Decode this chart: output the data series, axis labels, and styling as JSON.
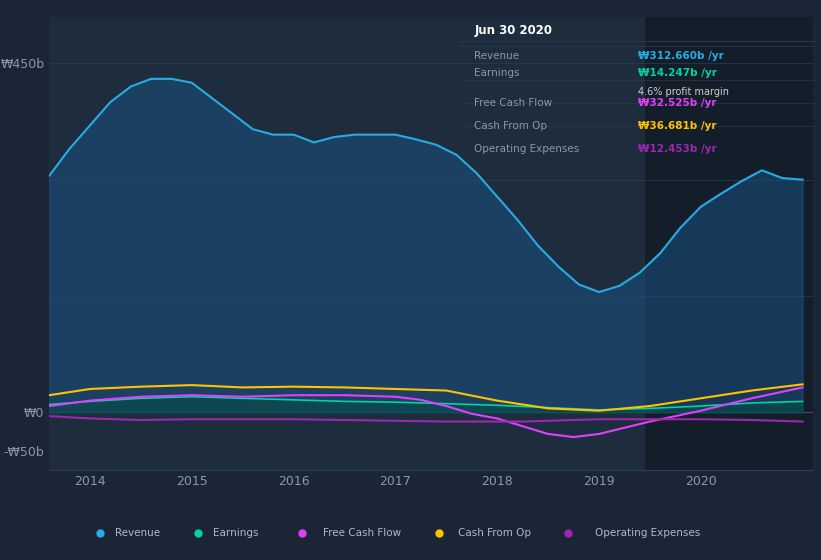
{
  "background_color": "#1c2535",
  "plot_bg_color": "#1e2d3e",
  "highlight_bg_color": "#141e2a",
  "grid_color": "#2d3f52",
  "ylim": [
    -75,
    510
  ],
  "xlim": [
    2013.6,
    2021.1
  ],
  "ytick_positions": [
    -50,
    0,
    450
  ],
  "ytick_labels": [
    "-₩50b",
    "₩0",
    "₩450b"
  ],
  "xticks": [
    2014,
    2015,
    2016,
    2017,
    2018,
    2019,
    2020
  ],
  "legend_items": [
    {
      "label": "Revenue",
      "color": "#29abe2"
    },
    {
      "label": "Earnings",
      "color": "#00d4a0"
    },
    {
      "label": "Free Cash Flow",
      "color": "#e040fb"
    },
    {
      "label": "Cash From Op",
      "color": "#ffc200"
    },
    {
      "label": "Operating Expenses",
      "color": "#9c27b0"
    }
  ],
  "info_box": {
    "date": "Jun 30 2020",
    "rows": [
      {
        "label": "Revenue",
        "val": "₩312.660b /yr",
        "val_color": "#29abe2"
      },
      {
        "label": "Earnings",
        "val": "₩14.247b /yr",
        "val_color": "#00d4a0",
        "sub": "4.6% profit margin"
      },
      {
        "label": "Free Cash Flow",
        "val": "₩32.525b /yr",
        "val_color": "#e040fb"
      },
      {
        "label": "Cash From Op",
        "val": "₩36.681b /yr",
        "val_color": "#ffc200"
      },
      {
        "label": "Operating Expenses",
        "val": "₩12.453b /yr",
        "val_color": "#9c27b0"
      }
    ]
  },
  "revenue_x": [
    2013.6,
    2013.8,
    2014.0,
    2014.2,
    2014.4,
    2014.6,
    2014.8,
    2015.0,
    2015.2,
    2015.4,
    2015.6,
    2015.8,
    2016.0,
    2016.2,
    2016.4,
    2016.6,
    2016.8,
    2017.0,
    2017.2,
    2017.4,
    2017.6,
    2017.8,
    2018.0,
    2018.2,
    2018.4,
    2018.6,
    2018.8,
    2019.0,
    2019.2,
    2019.4,
    2019.6,
    2019.8,
    2020.0,
    2020.2,
    2020.4,
    2020.6,
    2020.8,
    2021.0
  ],
  "revenue_y": [
    305,
    340,
    370,
    400,
    420,
    430,
    430,
    425,
    405,
    385,
    365,
    358,
    358,
    348,
    355,
    358,
    358,
    358,
    352,
    345,
    332,
    308,
    278,
    248,
    215,
    188,
    165,
    155,
    163,
    180,
    205,
    238,
    265,
    282,
    298,
    312,
    302,
    300
  ],
  "earnings_x": [
    2013.6,
    2014.0,
    2014.5,
    2015.0,
    2015.5,
    2016.0,
    2016.5,
    2017.0,
    2017.5,
    2018.0,
    2018.5,
    2019.0,
    2019.5,
    2020.0,
    2020.5,
    2021.0
  ],
  "earnings_y": [
    10,
    14,
    18,
    20,
    18,
    16,
    14,
    13,
    11,
    9,
    6,
    3,
    5,
    8,
    12,
    14
  ],
  "fcf_x": [
    2013.6,
    2014.0,
    2014.5,
    2015.0,
    2015.5,
    2016.0,
    2016.5,
    2017.0,
    2017.25,
    2017.5,
    2017.75,
    2018.0,
    2018.25,
    2018.5,
    2018.75,
    2019.0,
    2019.5,
    2020.0,
    2020.5,
    2021.0
  ],
  "fcf_y": [
    8,
    15,
    20,
    22,
    20,
    22,
    22,
    20,
    16,
    8,
    -2,
    -8,
    -18,
    -28,
    -32,
    -28,
    -12,
    2,
    18,
    32
  ],
  "cashfromop_x": [
    2013.6,
    2014.0,
    2014.5,
    2015.0,
    2015.5,
    2016.0,
    2016.5,
    2017.0,
    2017.5,
    2018.0,
    2018.5,
    2019.0,
    2019.5,
    2020.0,
    2020.5,
    2021.0
  ],
  "cashfromop_y": [
    22,
    30,
    33,
    35,
    32,
    33,
    32,
    30,
    28,
    15,
    5,
    2,
    8,
    18,
    28,
    36
  ],
  "opex_x": [
    2013.6,
    2014.0,
    2014.5,
    2015.0,
    2015.5,
    2016.0,
    2016.5,
    2017.0,
    2017.5,
    2018.0,
    2018.25,
    2018.5,
    2018.75,
    2019.0,
    2019.5,
    2020.0,
    2020.5,
    2021.0
  ],
  "opex_y": [
    -5,
    -8,
    -10,
    -9,
    -9,
    -9,
    -10,
    -11,
    -12,
    -12,
    -12,
    -11,
    -10,
    -9,
    -9,
    -9,
    -10,
    -12
  ],
  "highlight_x_start": 2019.45
}
